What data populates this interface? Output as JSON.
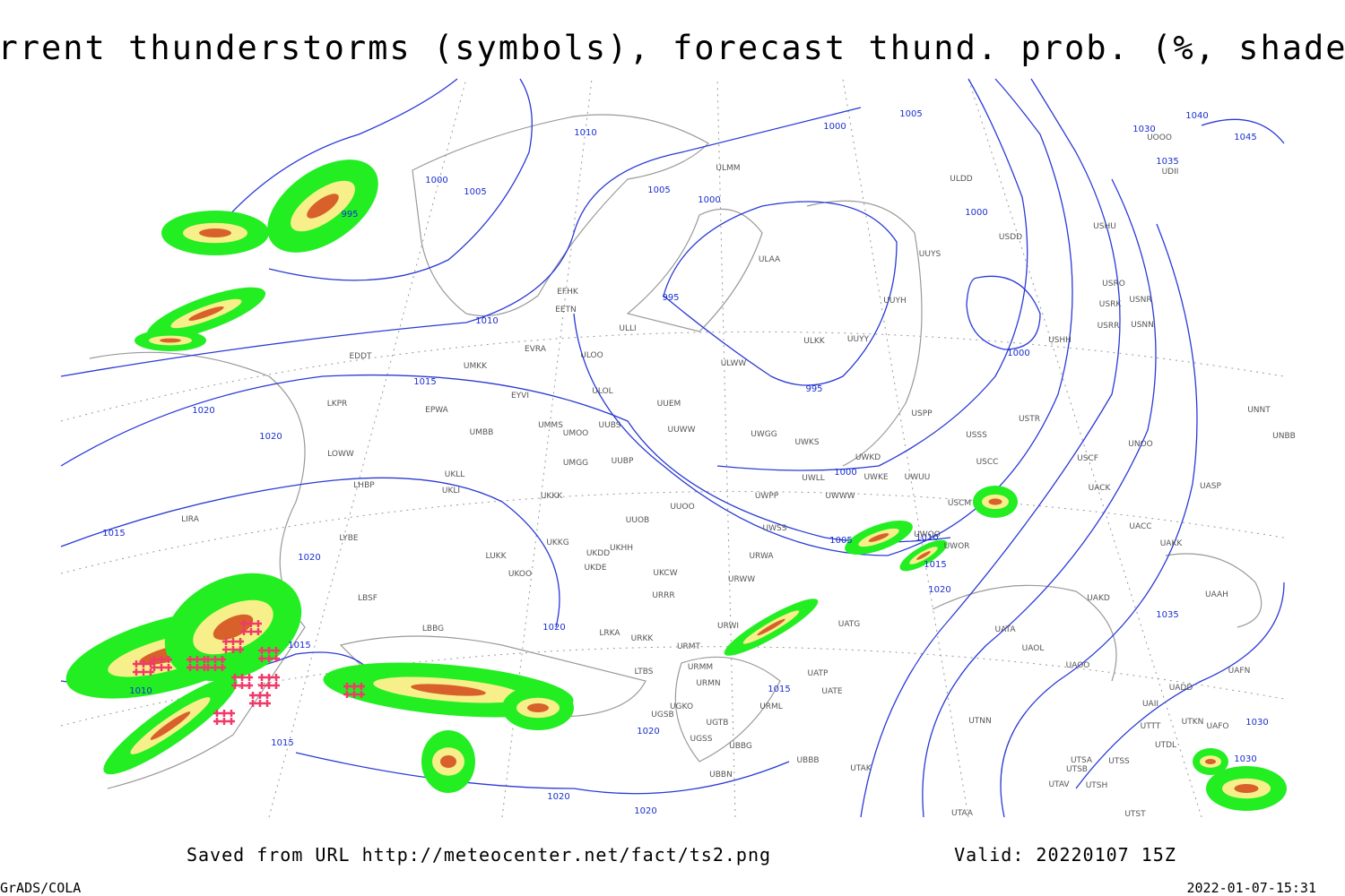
{
  "header": {
    "title": "Current thunderstorms (symbols), forecast thund. prob. (%, shaded)"
  },
  "footer": {
    "source": "Saved from URL http://meteocenter.net/fact/ts2.png",
    "valid": "Valid: 20220107 15Z",
    "software": "GrADS/COLA",
    "timestamp": "2022-01-07-15:31"
  },
  "isobar_labels": [
    1010,
    1000,
    1005,
    995,
    1005,
    1000,
    1000,
    1005,
    1000,
    1030,
    1040,
    1045,
    1035,
    995,
    1010,
    1000,
    995,
    1015,
    1020,
    1020,
    1000,
    1015,
    1020,
    1005,
    1010,
    1015,
    1020,
    1020,
    1015,
    1010,
    1015,
    1015,
    1020,
    1020,
    1020,
    1035,
    1030,
    1030
  ],
  "stations": [
    "ULMM",
    "ULDD",
    "USDD",
    "USHU",
    "ULAA",
    "UUYS",
    "USRO",
    "USNR",
    "USRK",
    "USRR",
    "USNN",
    "UUYH",
    "USHH",
    "EFHK",
    "EETN",
    "ULLI",
    "EVRA",
    "ULOO",
    "ULKK",
    "UUYY",
    "ULWW",
    "EDDT",
    "UMKK",
    "EYVI",
    "ULOL",
    "UUEM",
    "LKPR",
    "EPWA",
    "UMMS",
    "UUBS",
    "UMOO",
    "UUWW",
    "UWGG",
    "UWKS",
    "UMBB",
    "USSS",
    "USTR",
    "USPP",
    "UNOO",
    "LOWW",
    "UMGG",
    "UUBP",
    "UWKD",
    "UWKE",
    "USCF",
    "USCC",
    "UWLL",
    "UWWW",
    "UWUU",
    "LHBP",
    "UKLL",
    "UKLI",
    "USCM",
    "UWPP",
    "UACK",
    "UASP",
    "UKKK",
    "UUOO",
    "UUOB",
    "UWSS",
    "LIRA",
    "UACC",
    "UAKK",
    "LYBE",
    "UKHH",
    "UKDD",
    "UKKG",
    "UWOR",
    "UWOO",
    "URWA",
    "LUKK",
    "UKOO",
    "UKDE",
    "UKCW",
    "URWW",
    "URRR",
    "UAKD",
    "UAAH",
    "LBSF",
    "UATG",
    "URWI",
    "LBBG",
    "LRKA",
    "URKK",
    "URMT",
    "UATA",
    "UAOL",
    "UAOO",
    "URMM",
    "LTBS",
    "URMN",
    "UATP",
    "UATE",
    "UADD",
    "UAFN",
    "UGKO",
    "URML",
    "UAII",
    "UGSB",
    "UGTB",
    "UTNN",
    "UTTT",
    "UTKN",
    "UAFO",
    "UGSS",
    "UBBG",
    "UTDL",
    "UBBB",
    "UTAK",
    "UTSA",
    "UTSS",
    "UTSB",
    "UBBN",
    "UTAV",
    "UTSH",
    "UTAA",
    "UTST",
    "UNNT",
    "UNBB",
    "UDII",
    "UOOO"
  ]
}
